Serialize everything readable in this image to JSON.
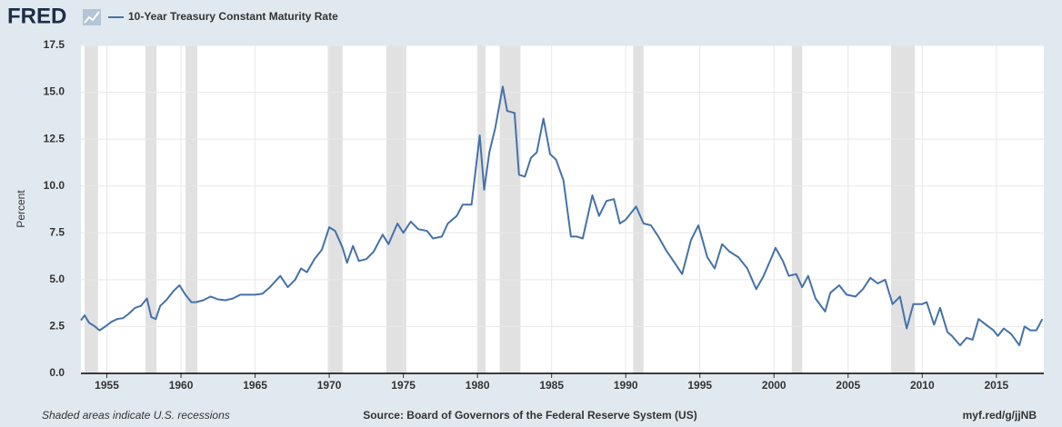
{
  "logo": "FRED",
  "chart_data": {
    "type": "line",
    "ylabel": "Percent",
    "note": "Shaded areas indicate U.S. recessions",
    "source": "Source: Board of Governors of the Federal Reserve System (US)",
    "link": "myf.red/g/jjNB",
    "x": [
      1953.25,
      1953.5,
      1953.8,
      1954.2,
      1954.5,
      1954.9,
      1955.3,
      1955.7,
      1956.1,
      1956.5,
      1956.9,
      1957.3,
      1957.7,
      1958.0,
      1958.3,
      1958.6,
      1959.0,
      1959.5,
      1959.9,
      1960.3,
      1960.7,
      1961.0,
      1961.5,
      1962.0,
      1962.5,
      1963.0,
      1963.5,
      1964.0,
      1964.5,
      1965.0,
      1965.5,
      1966.0,
      1966.7,
      1967.2,
      1967.7,
      1968.1,
      1968.5,
      1969.0,
      1969.5,
      1970.0,
      1970.4,
      1970.9,
      1971.2,
      1971.6,
      1972.0,
      1972.5,
      1973.0,
      1973.6,
      1974.0,
      1974.6,
      1975.0,
      1975.5,
      1976.0,
      1976.6,
      1977.0,
      1977.6,
      1978.0,
      1978.6,
      1979.0,
      1979.6,
      1980.15,
      1980.45,
      1980.8,
      1981.2,
      1981.7,
      1982.0,
      1982.5,
      1982.8,
      1983.2,
      1983.6,
      1984.0,
      1984.45,
      1984.9,
      1985.3,
      1985.8,
      1986.3,
      1986.7,
      1987.1,
      1987.75,
      1988.2,
      1988.7,
      1989.2,
      1989.6,
      1990.0,
      1990.7,
      1991.2,
      1991.7,
      1992.2,
      1992.7,
      1993.3,
      1993.8,
      1994.4,
      1994.9,
      1995.5,
      1996.0,
      1996.5,
      1997.0,
      1997.6,
      1998.2,
      1998.8,
      1999.3,
      1999.9,
      2000.1,
      2000.6,
      2001.0,
      2001.5,
      2001.9,
      2002.3,
      2002.8,
      2003.45,
      2003.8,
      2004.4,
      2004.9,
      2005.5,
      2006.0,
      2006.5,
      2007.0,
      2007.5,
      2008.0,
      2008.5,
      2008.95,
      2009.4,
      2010.0,
      2010.3,
      2010.8,
      2011.2,
      2011.7,
      2012.0,
      2012.55,
      2013.0,
      2013.4,
      2013.8,
      2014.3,
      2014.8,
      2015.1,
      2015.5,
      2016.0,
      2016.55,
      2016.9,
      2017.3,
      2017.7,
      2018.1
    ],
    "series": [
      {
        "name": "10-Year Treasury Constant Maturity Rate",
        "color": "#4572a7",
        "values": [
          2.83,
          3.1,
          2.7,
          2.5,
          2.3,
          2.5,
          2.75,
          2.9,
          2.95,
          3.2,
          3.5,
          3.6,
          4.0,
          3.0,
          2.9,
          3.6,
          3.9,
          4.4,
          4.7,
          4.2,
          3.8,
          3.8,
          3.9,
          4.1,
          3.95,
          3.9,
          4.0,
          4.2,
          4.2,
          4.2,
          4.25,
          4.6,
          5.2,
          4.6,
          5.0,
          5.6,
          5.4,
          6.1,
          6.6,
          7.8,
          7.6,
          6.7,
          5.9,
          6.8,
          6.0,
          6.1,
          6.5,
          7.4,
          6.9,
          8.0,
          7.5,
          8.1,
          7.7,
          7.6,
          7.2,
          7.3,
          8.0,
          8.4,
          9.0,
          9.0,
          12.7,
          9.8,
          11.8,
          13.1,
          15.3,
          14.0,
          13.9,
          10.6,
          10.5,
          11.5,
          11.8,
          13.6,
          11.7,
          11.4,
          10.3,
          7.3,
          7.3,
          7.2,
          9.5,
          8.4,
          9.2,
          9.3,
          8.0,
          8.2,
          8.9,
          8.0,
          7.9,
          7.3,
          6.6,
          5.9,
          5.3,
          7.1,
          7.9,
          6.2,
          5.6,
          6.9,
          6.5,
          6.2,
          5.6,
          4.5,
          5.2,
          6.3,
          6.7,
          6.0,
          5.2,
          5.3,
          4.6,
          5.2,
          4.0,
          3.3,
          4.3,
          4.7,
          4.2,
          4.1,
          4.5,
          5.1,
          4.8,
          5.0,
          3.7,
          4.1,
          2.4,
          3.7,
          3.7,
          3.8,
          2.6,
          3.5,
          2.2,
          2.0,
          1.5,
          1.9,
          1.8,
          2.9,
          2.6,
          2.3,
          2.0,
          2.4,
          2.1,
          1.5,
          2.5,
          2.3,
          2.3,
          2.9
        ]
      }
    ],
    "shaded_regions": [
      [
        1953.5,
        1954.4
      ],
      [
        1957.6,
        1958.35
      ],
      [
        1960.3,
        1961.1
      ],
      [
        1969.9,
        1970.9
      ],
      [
        1973.85,
        1975.2
      ],
      [
        1980.0,
        1980.55
      ],
      [
        1981.5,
        1982.9
      ],
      [
        1990.5,
        1991.2
      ],
      [
        2001.2,
        2001.9
      ],
      [
        2007.9,
        2009.5
      ]
    ],
    "xlim": [
      1953.25,
      2018.2
    ],
    "ylim": [
      0,
      17.5
    ],
    "xticks": [
      1955,
      1960,
      1965,
      1970,
      1975,
      1980,
      1985,
      1990,
      1995,
      2000,
      2005,
      2010,
      2015
    ],
    "yticks": [
      {
        "value": 0,
        "label": "0.0"
      },
      2.5,
      {
        "value": 5,
        "label": "5.0"
      },
      7.5,
      {
        "value": 10,
        "label": "10.0"
      },
      12.5,
      {
        "value": 15,
        "label": "15.0"
      },
      17.5
    ],
    "grid": true,
    "shade_color": "#e1e1e1"
  }
}
